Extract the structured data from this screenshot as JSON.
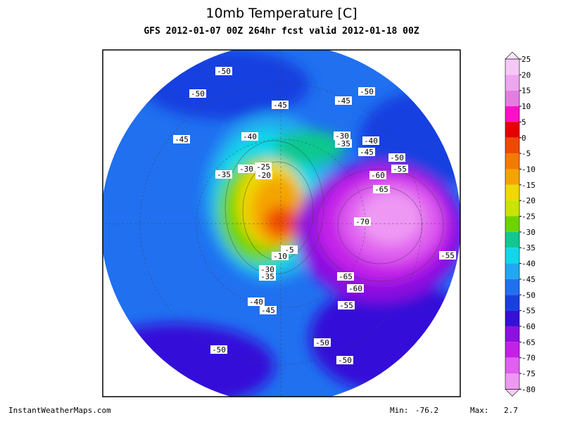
{
  "title": "10mb Temperature [C]",
  "subtitle": "GFS 2012-01-07 00Z 264hr fcst valid 2012-01-18 00Z",
  "footer": "InstantWeatherMaps.com",
  "stats": {
    "min_label": "Min:",
    "min": -76.2,
    "max_label": "Max:",
    "max": 2.7
  },
  "colorbar": {
    "labels": [
      25,
      20,
      15,
      10,
      5,
      0,
      -5,
      -10,
      -15,
      -20,
      -25,
      -30,
      -35,
      -40,
      -45,
      -50,
      -55,
      -60,
      -65,
      -70,
      -75,
      -80
    ],
    "colors": [
      "#fbe6fb",
      "#f6c8f6",
      "#eea6ee",
      "#e27ee2",
      "#ff10c8",
      "#e80000",
      "#f04800",
      "#f47a00",
      "#f4a400",
      "#f0d800",
      "#c8e400",
      "#6cd400",
      "#10c890",
      "#10d8e8",
      "#20a8f0",
      "#2070f0",
      "#1840e0",
      "#3410d8",
      "#8c10e0",
      "#c420e8",
      "#e060f0",
      "#ee98f4",
      "#f8cef8"
    ]
  },
  "contour_labels": [
    -50,
    -50,
    -45,
    -45,
    -50,
    -45,
    -40,
    -30,
    -35,
    -40,
    -45,
    -50,
    -55,
    -60,
    -35,
    -30,
    -25,
    -20,
    -65,
    -70,
    -55,
    -5,
    -10,
    -65,
    -60,
    -30,
    -35,
    -40,
    -45,
    -55,
    -50,
    -50,
    -50
  ]
}
